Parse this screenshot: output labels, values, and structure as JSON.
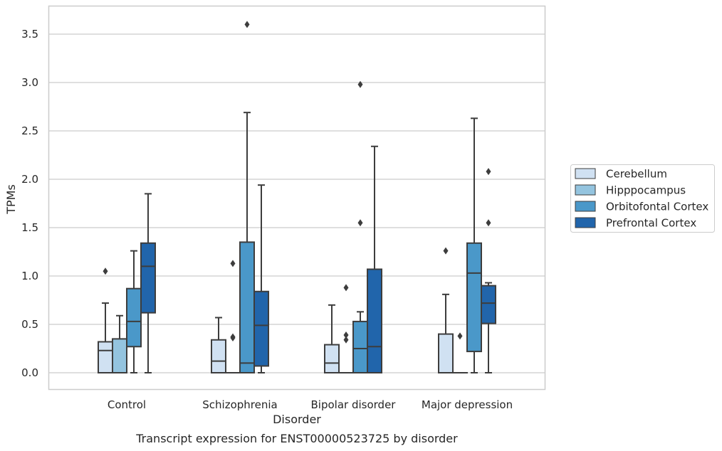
{
  "chart_data": {
    "type": "box",
    "caption": "Transcript expression for ENST00000523725 by disorder",
    "xlabel": "Disorder",
    "ylabel": "TPMs",
    "ylim": [
      -0.17,
      3.8
    ],
    "yticks": [
      "0.0",
      "0.5",
      "1.0",
      "1.5",
      "2.0",
      "2.5",
      "3.0",
      "3.5"
    ],
    "grid": true,
    "legend_position": "right",
    "categories": [
      "Control",
      "Schizophrenia",
      "Bipolar disorder",
      "Major depression"
    ],
    "series": [
      {
        "name": "Cerebellum",
        "color": "#d0e1f2",
        "boxes": [
          {
            "whislo": 0.0,
            "q1": 0.0,
            "med": 0.23,
            "q3": 0.32,
            "whishi": 0.72,
            "fliers": [
              1.05
            ]
          },
          {
            "whislo": 0.0,
            "q1": 0.0,
            "med": 0.12,
            "q3": 0.34,
            "whishi": 0.57,
            "fliers": []
          },
          {
            "whislo": 0.0,
            "q1": 0.0,
            "med": 0.1,
            "q3": 0.29,
            "whishi": 0.7,
            "fliers": []
          },
          {
            "whislo": 0.0,
            "q1": 0.0,
            "med": 0.0,
            "q3": 0.4,
            "whishi": 0.81,
            "fliers": [
              1.26
            ]
          }
        ]
      },
      {
        "name": "Hipppocampus",
        "color": "#94c4df",
        "boxes": [
          {
            "whislo": 0.0,
            "q1": 0.0,
            "med": 0.0,
            "q3": 0.35,
            "whishi": 0.59,
            "fliers": []
          },
          {
            "whislo": 0.0,
            "q1": 0.0,
            "med": 0.0,
            "q3": 0.0,
            "whishi": 0.0,
            "fliers": [
              1.13,
              0.37,
              0.36
            ]
          },
          {
            "whislo": 0.0,
            "q1": 0.0,
            "med": 0.0,
            "q3": 0.0,
            "whishi": 0.0,
            "fliers": [
              0.88,
              0.39,
              0.34
            ]
          },
          {
            "whislo": 0.0,
            "q1": 0.0,
            "med": 0.0,
            "q3": 0.0,
            "whishi": 0.0,
            "fliers": [
              0.38
            ]
          }
        ]
      },
      {
        "name": "Orbitofontal Cortex",
        "color": "#4a98c9",
        "boxes": [
          {
            "whislo": 0.0,
            "q1": 0.27,
            "med": 0.53,
            "q3": 0.87,
            "whishi": 1.26,
            "fliers": []
          },
          {
            "whislo": 0.0,
            "q1": 0.0,
            "med": 0.1,
            "q3": 1.35,
            "whishi": 2.69,
            "fliers": [
              3.6
            ]
          },
          {
            "whislo": 0.0,
            "q1": 0.0,
            "med": 0.25,
            "q3": 0.53,
            "whishi": 0.63,
            "fliers": [
              2.98,
              1.55
            ]
          },
          {
            "whislo": 0.0,
            "q1": 0.22,
            "med": 1.03,
            "q3": 1.34,
            "whishi": 2.63,
            "fliers": []
          }
        ]
      },
      {
        "name": "Prefrontal Cortex",
        "color": "#2165ab",
        "boxes": [
          {
            "whislo": 0.0,
            "q1": 0.62,
            "med": 1.1,
            "q3": 1.34,
            "whishi": 1.85,
            "fliers": []
          },
          {
            "whislo": 0.0,
            "q1": 0.07,
            "med": 0.49,
            "q3": 0.84,
            "whishi": 1.94,
            "fliers": []
          },
          {
            "whislo": 0.0,
            "q1": 0.0,
            "med": 0.27,
            "q3": 1.07,
            "whishi": 2.34,
            "fliers": []
          },
          {
            "whislo": 0.0,
            "q1": 0.51,
            "med": 0.72,
            "q3": 0.9,
            "whishi": 0.93,
            "fliers": [
              2.08,
              1.55
            ]
          }
        ]
      }
    ]
  }
}
